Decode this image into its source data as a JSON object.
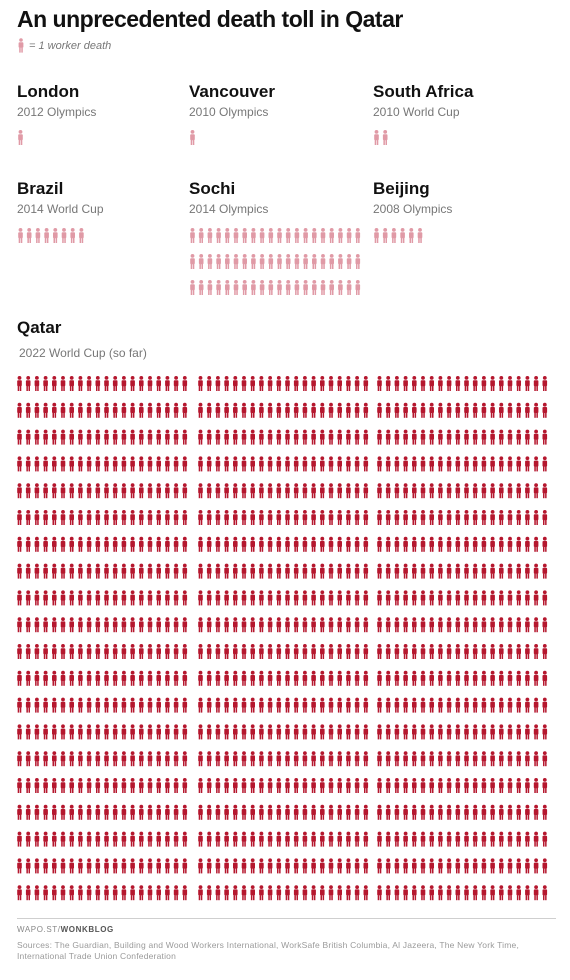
{
  "title": "An unprecedented death toll in Qatar",
  "legend": {
    "label": "= 1 worker death"
  },
  "colors": {
    "light": "#e09aa6",
    "dark": "#b5172e"
  },
  "chart_data": {
    "type": "pictogram",
    "unit": "1 worker death",
    "events": [
      {
        "name": "London",
        "event": "2012 Olympics",
        "deaths": 1
      },
      {
        "name": "Vancouver",
        "event": "2010 Olympics",
        "deaths": 1
      },
      {
        "name": "South Africa",
        "event": "2010 World Cup",
        "deaths": 2
      },
      {
        "name": "Brazil",
        "event": "2014 World Cup",
        "deaths": 8
      },
      {
        "name": "Sochi",
        "event": "2014 Olympics",
        "deaths": 60
      },
      {
        "name": "Beijing",
        "event": "2008 Olympics",
        "deaths": 6
      },
      {
        "name": "Qatar",
        "event": "2022 World Cup (so far)",
        "deaths": 1200
      }
    ]
  },
  "credit": {
    "prefix": "WAPO.ST/",
    "brand": "WONKBLOG"
  },
  "sources": "Sources: The Guardian, Building and Wood Workers International, WorkSafe British Columbia, Al Jazeera, The New York Time, International Trade Union Confederation"
}
